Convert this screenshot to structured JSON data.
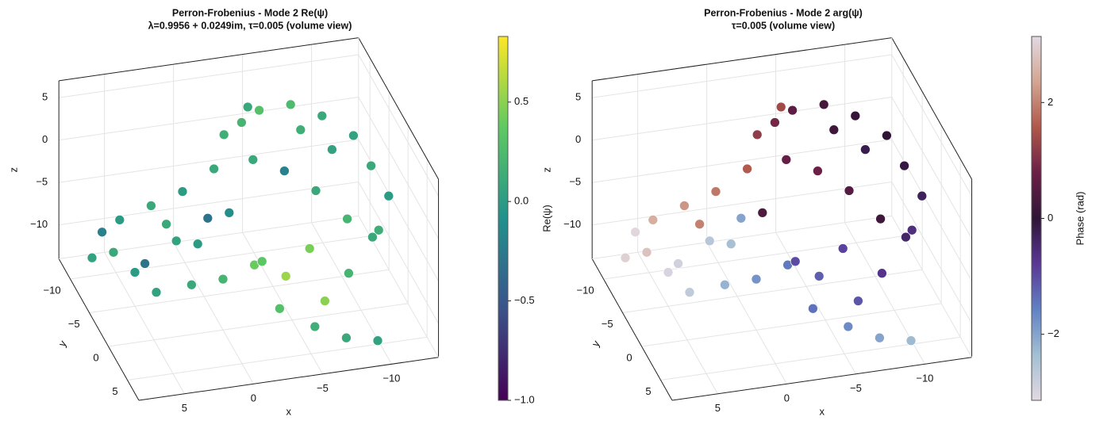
{
  "chart_data": [
    {
      "type": "scatter3d",
      "title": "Perron-Frobenius - Mode 2  Re(ψ)",
      "subtitle": "λ=0.9956 + 0.0249im, τ=0.005 (volume view)",
      "xlabel": "x",
      "ylabel": "y",
      "zlabel": "z",
      "xlim": [
        -13.4,
        8.3
      ],
      "ylim": [
        -13,
        8
      ],
      "zlim": [
        -14,
        7
      ],
      "xticks": [
        {
          "value": -10,
          "label": "−10"
        },
        {
          "value": -5,
          "label": "−5"
        },
        0,
        5
      ],
      "yticks": [
        {
          "value": -10,
          "label": "−10"
        },
        {
          "value": -5,
          "label": "−5"
        },
        0,
        5
      ],
      "zticks": [
        {
          "value": -10,
          "label": "−10"
        },
        {
          "value": -5,
          "label": "−5"
        },
        0,
        5
      ],
      "x": [
        7,
        6,
        5,
        4,
        3,
        2,
        1,
        0,
        -1,
        -2,
        -3,
        -4,
        -6,
        -8,
        -10,
        -11,
        -12,
        -11,
        -9,
        -7,
        -5,
        -6,
        -4,
        -2,
        0,
        2,
        4,
        -3,
        -5,
        -7,
        -9,
        -6,
        -8,
        -10,
        1,
        -1,
        -3,
        -7,
        -9,
        3,
        5,
        -2,
        -4,
        6
      ],
      "y": [
        -9,
        -7,
        -9,
        -6,
        -8,
        -5,
        -7,
        -4,
        -6,
        -7,
        -6,
        -5,
        -4,
        -3,
        -2,
        -1,
        0,
        1,
        0,
        -1,
        -2,
        1,
        2,
        1,
        0,
        -1,
        -3,
        4,
        6,
        7,
        8,
        5,
        4,
        3,
        -3,
        -2,
        -3,
        -5,
        -4,
        -4,
        -5,
        3,
        -8,
        -10
      ],
      "z": [
        -11,
        -9,
        -7,
        -10,
        -5,
        -7,
        -3,
        -4,
        0,
        3,
        5,
        7,
        8,
        7,
        5,
        2,
        -1,
        -4,
        -3,
        0,
        2,
        -5,
        -7,
        -6,
        -8,
        -9,
        -11,
        -9,
        -10,
        -11,
        -11,
        -8,
        -6,
        -3,
        -6,
        -2,
        3,
        4,
        2,
        -4,
        -10,
        -4,
        5,
        -9
      ],
      "values": [
        0.05,
        0.1,
        0.0,
        -0.3,
        0.1,
        0.05,
        0.0,
        -0.3,
        0.1,
        0.15,
        0.2,
        0.3,
        0.25,
        0.1,
        0.05,
        0.1,
        0.0,
        0.15,
        0.2,
        0.1,
        -0.2,
        0.45,
        0.55,
        0.4,
        0.2,
        0.1,
        0.05,
        0.3,
        0.15,
        0.1,
        0.05,
        0.5,
        0.2,
        0.1,
        0.0,
        -0.1,
        0.1,
        0.15,
        0.05,
        0.1,
        0.0,
        0.35,
        0.1,
        -0.2
      ],
      "colorbar": {
        "label": "Re(ψ)",
        "clim": [
          -1.0,
          0.83
        ],
        "ticks": [
          {
            "value": -1.0,
            "label": "−1.0"
          },
          {
            "value": -0.5,
            "label": "−0.5"
          },
          {
            "value": 0.0,
            "label": "0.0"
          },
          {
            "value": 0.5,
            "label": "0.5"
          }
        ],
        "colormap": [
          "#440154",
          "#3b528b",
          "#21918c",
          "#5ec962",
          "#fde725"
        ]
      }
    },
    {
      "type": "scatter3d",
      "title": "Perron-Frobenius - Mode 2  arg(ψ)",
      "subtitle": "τ=0.005 (volume view)",
      "xlabel": "x",
      "ylabel": "y",
      "zlabel": "z",
      "xlim": [
        -13.4,
        8.3
      ],
      "ylim": [
        -13,
        8
      ],
      "zlim": [
        -14,
        7
      ],
      "xticks": [
        {
          "value": -10,
          "label": "−10"
        },
        {
          "value": -5,
          "label": "−5"
        },
        0,
        5
      ],
      "yticks": [
        {
          "value": -10,
          "label": "−10"
        },
        {
          "value": -5,
          "label": "−5"
        },
        0,
        5
      ],
      "zticks": [
        {
          "value": -10,
          "label": "−10"
        },
        {
          "value": -5,
          "label": "−5"
        },
        0,
        5
      ],
      "x": [
        7,
        6,
        5,
        4,
        3,
        2,
        1,
        0,
        -1,
        -2,
        -3,
        -4,
        -6,
        -8,
        -10,
        -11,
        -12,
        -11,
        -9,
        -7,
        -5,
        -6,
        -4,
        -2,
        0,
        2,
        4,
        -3,
        -5,
        -7,
        -9,
        -6,
        -8,
        -10,
        1,
        -1,
        -3,
        -7,
        -9,
        3,
        5,
        -2,
        -4,
        6
      ],
      "y": [
        -9,
        -7,
        -9,
        -6,
        -8,
        -5,
        -7,
        -4,
        -6,
        -7,
        -6,
        -5,
        -4,
        -3,
        -2,
        -1,
        0,
        1,
        0,
        -1,
        -2,
        1,
        2,
        1,
        0,
        -1,
        -3,
        4,
        6,
        7,
        8,
        5,
        4,
        3,
        -3,
        -2,
        -3,
        -5,
        -4,
        -4,
        -5,
        3,
        -8,
        -10
      ],
      "z": [
        -11,
        -9,
        -7,
        -10,
        -5,
        -7,
        -3,
        -4,
        0,
        3,
        5,
        7,
        8,
        7,
        5,
        2,
        -1,
        -4,
        -3,
        0,
        2,
        -5,
        -7,
        -6,
        -8,
        -9,
        -11,
        -9,
        -10,
        -11,
        -11,
        -8,
        -6,
        -3,
        -6,
        -2,
        3,
        4,
        2,
        -4,
        -10,
        -4,
        5,
        -9
      ],
      "values": [
        3.0,
        2.8,
        2.5,
        -2.9,
        2.2,
        -2.6,
        1.9,
        -2.0,
        1.6,
        1.2,
        0.9,
        0.6,
        0.3,
        0.1,
        0.0,
        -0.1,
        -0.3,
        -0.6,
        0.2,
        0.5,
        0.8,
        -0.9,
        -1.2,
        -1.5,
        -1.8,
        -2.2,
        -2.7,
        -1.4,
        -1.7,
        -2.0,
        -2.3,
        -1.1,
        -0.7,
        -0.4,
        -2.4,
        0.4,
        0.7,
        0.2,
        -0.2,
        2.0,
        -3.0,
        -1.0,
        1.4,
        3.1
      ],
      "colorbar": {
        "label": "Phase (rad)",
        "clim": [
          -3.14,
          3.14
        ],
        "ticks": [
          {
            "value": -2,
            "label": "−2"
          },
          0,
          2
        ],
        "colormap": [
          "#e2d9e2",
          "#a3bfd3",
          "#6181c4",
          "#5a3796",
          "#2f1436",
          "#6b1f47",
          "#b0574a",
          "#d3a592",
          "#e2d9e2"
        ]
      }
    }
  ]
}
